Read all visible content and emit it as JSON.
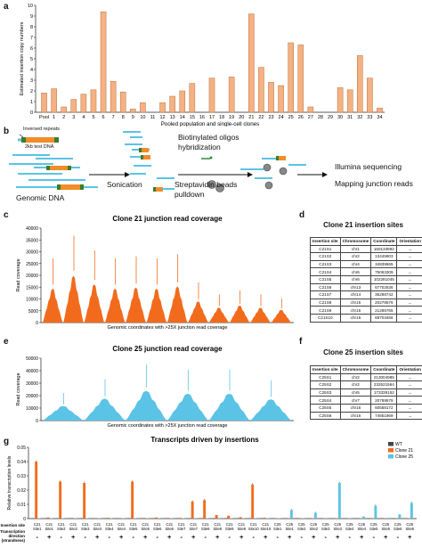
{
  "panels": {
    "a": "a",
    "b": "b",
    "c": "c",
    "d": "d",
    "e": "e",
    "f": "f",
    "g": "g"
  },
  "colors": {
    "orange": "#f4b183",
    "orange_edge": "#c0723a",
    "clone21": "#f26b1d",
    "clone25": "#5bc3e6",
    "wt": "#444444"
  },
  "panel_b": {
    "inverted_repeats": "Inversed repeats",
    "test_dna": "2kb test DNA",
    "genomic_dna": "Genomic DNA",
    "sonication": "Sonication",
    "hybridization_line1": "Biotinylated oligos",
    "hybridization_line2": "hybridization",
    "pulldown_line1": "Streptavidin beads",
    "pulldown_line2": "pulldown",
    "sequencing": "Illumina sequencing",
    "mapping": "Mapping junction reads"
  },
  "chart_data": [
    {
      "type": "bar",
      "panel": "a",
      "ylabel": "Estimated insertion copy numbers",
      "xlabel": "Pooled population and single-cell clones",
      "ylim": [
        0,
        10
      ],
      "yticks": [
        0,
        1,
        2,
        3,
        4,
        5,
        6,
        7,
        8,
        9,
        10
      ],
      "categories": [
        "Pool",
        "1",
        "2",
        "3",
        "4",
        "5",
        "6",
        "7",
        "8",
        "9",
        "10",
        "11",
        "12",
        "13",
        "14",
        "15",
        "16",
        "17",
        "18",
        "19",
        "20",
        "21",
        "22",
        "23",
        "24",
        "25",
        "26",
        "27",
        "28",
        "29",
        "30",
        "31",
        "32",
        "33",
        "34"
      ],
      "values": [
        1.8,
        2.2,
        0.5,
        1.2,
        1.7,
        2.1,
        9.4,
        2.9,
        1.9,
        0.3,
        0.9,
        0.0,
        0.9,
        1.5,
        2.0,
        2.7,
        0.0,
        3.2,
        0.0,
        3.3,
        0.0,
        9.2,
        4.2,
        2.8,
        2.5,
        6.5,
        6.3,
        0.5,
        0.0,
        0.0,
        2.3,
        2.1,
        5.3,
        3.2,
        0.4
      ]
    },
    {
      "type": "area",
      "panel": "c",
      "title": "Clone 21 junction read coverage",
      "ylabel": "Read coverage",
      "xlabel": "Genomic coordinates with >25X junction read coverage",
      "ylim": [
        0,
        40000
      ],
      "yticks": [
        0,
        5000,
        10000,
        15000,
        20000,
        25000,
        30000,
        35000,
        40000
      ],
      "peaks": [
        16000,
        22000,
        18000,
        16000,
        16500,
        16000,
        17000,
        10000,
        7000,
        8000,
        7000,
        6000
      ]
    },
    {
      "type": "table",
      "panel": "d",
      "title": "Clone 21 insertion sites",
      "columns": [
        "Insertion site",
        "Chromosome",
        "Coordinate",
        "Orientation"
      ],
      "rows": [
        [
          "C21S1",
          "chr1",
          "160133892",
          "→"
        ],
        [
          "C21S2",
          "chr2",
          "13445903",
          "←"
        ],
        [
          "C21S3",
          "chr4",
          "34839665",
          "←"
        ],
        [
          "C21S4",
          "chr6",
          "75063309",
          "←"
        ],
        [
          "C21S5",
          "chr6",
          "102281045",
          "←"
        ],
        [
          "C21S6",
          "chr13",
          "67702536",
          "←"
        ],
        [
          "C21S7",
          "chr14",
          "36298742",
          "←"
        ],
        [
          "C21S8",
          "chr15",
          "20278576",
          "←"
        ],
        [
          "C21S9",
          "chr15",
          "21285765",
          "←"
        ],
        [
          "C21S10",
          "chr15",
          "68703456",
          "→"
        ]
      ]
    },
    {
      "type": "area",
      "panel": "e",
      "title": "Clone 25 junction read coverage",
      "ylabel": "Read coverage",
      "xlabel": "Genomic coordinates with >25X junction read coverage",
      "ylim": [
        0,
        50000
      ],
      "yticks": [
        0,
        10000,
        20000,
        30000,
        40000,
        50000
      ],
      "peaks": [
        13000,
        19500,
        26500,
        24000,
        24000,
        19000
      ]
    },
    {
      "type": "table",
      "panel": "f",
      "title": "Clone 25 insertion sites",
      "columns": [
        "Insertion site",
        "Chromosome",
        "Coordinate",
        "Orientation"
      ],
      "rows": [
        [
          "C25S1",
          "chr2",
          "213004985",
          "←"
        ],
        [
          "C25S2",
          "chr2",
          "232521564",
          "←"
        ],
        [
          "C25S3",
          "chr5",
          "173339152",
          "←"
        ],
        [
          "C25S4",
          "chr7",
          "20789579",
          "←"
        ],
        [
          "C25S5",
          "chr16",
          "60558172",
          "←"
        ],
        [
          "C25S6",
          "chr16",
          "74651969",
          "→"
        ]
      ]
    },
    {
      "type": "bar",
      "panel": "g",
      "title": "Transcripts driven by insertions",
      "ylabel": "Relative transcription levels",
      "ylim": [
        0,
        0.05
      ],
      "yticks": [
        0,
        0.01,
        0.02,
        0.03,
        0.04,
        0.05
      ],
      "legend": [
        "WT",
        "Clone 21",
        "Clone 25"
      ],
      "legend_position": "top-right",
      "row_labels": [
        "Insertion site",
        "Transcription direction (strandness)"
      ],
      "categories": [
        {
          "clone": "C21",
          "site": "Site1",
          "dir": "-"
        },
        {
          "clone": "C21",
          "site": "Site1",
          "dir": "+"
        },
        {
          "clone": "C21",
          "site": "Site2",
          "dir": "-"
        },
        {
          "clone": "C21",
          "site": "Site2",
          "dir": "+"
        },
        {
          "clone": "C21",
          "site": "Site3",
          "dir": "-"
        },
        {
          "clone": "C21",
          "site": "Site3",
          "dir": "+"
        },
        {
          "clone": "C21",
          "site": "Site4",
          "dir": "-"
        },
        {
          "clone": "C21",
          "site": "Site4",
          "dir": "+"
        },
        {
          "clone": "C21",
          "site": "Site5",
          "dir": "-"
        },
        {
          "clone": "C21",
          "site": "Site5",
          "dir": "+"
        },
        {
          "clone": "C21",
          "site": "Site6",
          "dir": "-"
        },
        {
          "clone": "C21",
          "site": "Site6",
          "dir": "+"
        },
        {
          "clone": "C21",
          "site": "Site7",
          "dir": "-"
        },
        {
          "clone": "C21",
          "site": "Site7",
          "dir": "+"
        },
        {
          "clone": "C21",
          "site": "Site8",
          "dir": "-"
        },
        {
          "clone": "C21",
          "site": "Site8",
          "dir": "+"
        },
        {
          "clone": "C21",
          "site": "Site9",
          "dir": "-"
        },
        {
          "clone": "C21",
          "site": "Site9",
          "dir": "+"
        },
        {
          "clone": "C21",
          "site": "Site10",
          "dir": "-"
        },
        {
          "clone": "C21",
          "site": "Site10",
          "dir": "+"
        },
        {
          "clone": "C25",
          "site": "Site1",
          "dir": "-"
        },
        {
          "clone": "C25",
          "site": "Site1",
          "dir": "+"
        },
        {
          "clone": "C25",
          "site": "Site2",
          "dir": "-"
        },
        {
          "clone": "C25",
          "site": "Site2",
          "dir": "+"
        },
        {
          "clone": "C25",
          "site": "Site3",
          "dir": "-"
        },
        {
          "clone": "C25",
          "site": "Site3",
          "dir": "+"
        },
        {
          "clone": "C25",
          "site": "Site4",
          "dir": "-"
        },
        {
          "clone": "C25",
          "site": "Site4",
          "dir": "+"
        },
        {
          "clone": "C25",
          "site": "Site5",
          "dir": "-"
        },
        {
          "clone": "C25",
          "site": "Site5",
          "dir": "+"
        },
        {
          "clone": "C25",
          "site": "Site6",
          "dir": "-"
        },
        {
          "clone": "C25",
          "site": "Site6",
          "dir": "+"
        }
      ],
      "series": [
        {
          "name": "WT",
          "values": [
            0.0003,
            0.0003,
            0.0003,
            0.0003,
            0.0003,
            0.0003,
            0.0003,
            0.0003,
            0.0003,
            0.0003,
            0.0003,
            0.0003,
            0.0003,
            0.0003,
            0.0003,
            0.0003,
            0.0003,
            0.0003,
            0.0003,
            0.0003,
            0.0003,
            0.0003,
            0.0003,
            0.0003,
            0.0003,
            0.0003,
            0.0003,
            0.0003,
            0.0003,
            0.0003,
            0.0003,
            0.0003
          ]
        },
        {
          "name": "Clone 21",
          "values": [
            0.04,
            0.0008,
            0.026,
            0.0005,
            0.025,
            0.0004,
            0.0006,
            0.0004,
            0.026,
            0.0005,
            0.0008,
            0.0005,
            0.0005,
            0.012,
            0.013,
            0.0025,
            0.002,
            0.001,
            0.024,
            0.0006,
            0.0003,
            0.0003,
            0.0003,
            0.0003,
            0.0003,
            0.0003,
            0.0003,
            0.0003,
            0.0003,
            0.0003,
            0.0003,
            0.0003
          ]
        },
        {
          "name": "Clone 25",
          "values": [
            0.0003,
            0.0003,
            0.0003,
            0.0003,
            0.0003,
            0.0003,
            0.0003,
            0.0003,
            0.0003,
            0.0003,
            0.0003,
            0.0003,
            0.0003,
            0.0003,
            0.0003,
            0.0003,
            0.0003,
            0.0003,
            0.0003,
            0.0003,
            0.0003,
            0.006,
            0.0004,
            0.004,
            0.0005,
            0.025,
            0.0005,
            0.0015,
            0.009,
            0.0005,
            0.003,
            0.011
          ]
        }
      ]
    }
  ]
}
